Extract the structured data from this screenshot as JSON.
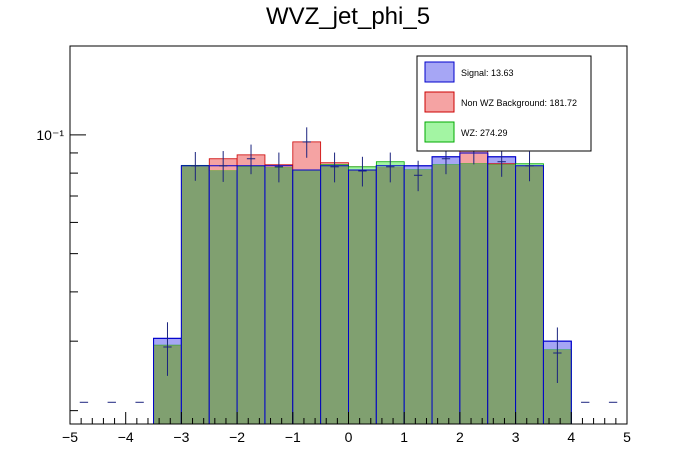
{
  "chart_data": {
    "type": "bar",
    "title": "WVZ_jet_phi_5",
    "xlabel": "",
    "ylabel": "",
    "xlim": [
      -5,
      5
    ],
    "ylim": [
      0.0185,
      0.168
    ],
    "yscale": "log",
    "x_tick_labels": [
      "−5",
      "−4",
      "−3",
      "−2",
      "−1",
      "0",
      "1",
      "2",
      "3",
      "4",
      "5"
    ],
    "y_tick_labels": [
      "10⁻¹"
    ],
    "bin_edges": [
      -5,
      -4.5,
      -4,
      -3.5,
      -3,
      -2.5,
      -2,
      -1.5,
      -1,
      -0.5,
      0,
      0.5,
      1,
      1.5,
      2,
      2.5,
      3,
      3.5,
      4,
      4.5,
      5
    ],
    "legend_position": "top-right",
    "series": [
      {
        "name": "Signal: 13.63",
        "fill": "#a6a6f5",
        "line": "#0000cc",
        "values": [
          0,
          0,
          0,
          0.0305,
          0.0835,
          0.0835,
          0.0835,
          0.0835,
          0.0815,
          0.0835,
          0.0815,
          0.0835,
          0.0835,
          0.088,
          0.09,
          0.088,
          0.0835,
          0.03,
          0,
          0
        ]
      },
      {
        "name": "Non WZ Background: 181.72",
        "fill": "#f5a3a3",
        "line": "#cc0000",
        "values": [
          0,
          0,
          0,
          0,
          0,
          0.087,
          0.089,
          0.084,
          0.096,
          0.085,
          0.083,
          0.083,
          0,
          0,
          0.0915,
          0.0845,
          0,
          0,
          0,
          0
        ]
      },
      {
        "name": "WZ: 274.29",
        "fill": "#a3f5a3",
        "line": "#00aa00",
        "values": [
          0,
          0,
          0,
          0.0293,
          0.0837,
          0.081,
          0.083,
          0.0825,
          0.0815,
          0.084,
          0.083,
          0.0855,
          0.0815,
          0.084,
          0.0845,
          0.084,
          0.0845,
          0.0285,
          0,
          0
        ]
      }
    ],
    "overlap_color": "#80a070",
    "data_points": {
      "name": "",
      "color": "#1a237e",
      "values": [
        0.021,
        0.021,
        0.021,
        0.029,
        0.0835,
        0.0835,
        0.087,
        0.083,
        0.096,
        0.083,
        0.081,
        0.083,
        0.079,
        0.087,
        0.092,
        0.0855,
        0.0835,
        0.028,
        0.021,
        0.021
      ],
      "errors": [
        0,
        0,
        0,
        0.0045,
        0.007,
        0.0075,
        0.0075,
        0.0072,
        0.0085,
        0.0072,
        0.007,
        0.0072,
        0.007,
        0.0075,
        0.0078,
        0.0072,
        0.0072,
        0.0045,
        0,
        0
      ]
    }
  }
}
